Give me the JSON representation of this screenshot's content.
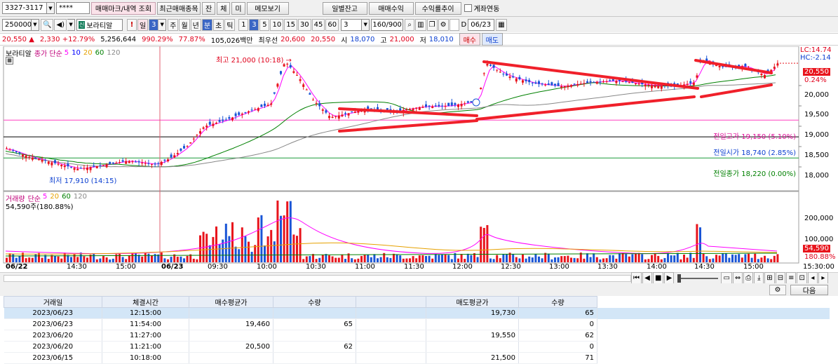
{
  "toolbar1": {
    "account": "3327-3117",
    "password": "****",
    "btn_trade_mark": "매매마크/내역 조회",
    "btn_recent": "최근매매종목",
    "btn_jan": "잔",
    "btn_che": "체",
    "btn_mi": "미",
    "btn_memo": "메모보기",
    "btn_daily": "일별잔고",
    "btn_profit": "매매수익",
    "btn_yield": "수익률추이",
    "account_link": "계좌연동"
  },
  "toolbar2": {
    "stock_code": "250000",
    "market_badge": "신",
    "stock_name": "보라티알",
    "excl": "!",
    "period_day": "일",
    "period_num": "3",
    "periods": [
      "주",
      "월",
      "년",
      "분",
      "초",
      "틱"
    ],
    "minutes": [
      "1",
      "3",
      "5",
      "10",
      "15",
      "30",
      "45",
      "60"
    ],
    "minute_sel": "3",
    "count": "160/900",
    "date_label": "D",
    "date": "06/23"
  },
  "quote": {
    "price": "20,550",
    "up_arrow": "▲",
    "change": "2,330",
    "change_pct": "+12.79%",
    "volume": "5,256,644",
    "vol_ratio": "990.29%",
    "turnover": "77.87%",
    "amount": "105,026백만",
    "best_ask_label": "최우선",
    "best_ask": "20,600",
    "best_bid": "20,550",
    "open_label": "시",
    "open": "18,070",
    "high_label": "고",
    "high": "21,000",
    "low_label": "저",
    "low": "18,010",
    "buy_btn": "매수",
    "sell_btn": "매도"
  },
  "chart": {
    "name_tag": "보라티알",
    "ma_label": "종가 단순",
    "ma_periods": [
      "5",
      "10",
      "20",
      "60",
      "120"
    ],
    "ma_colors": [
      "#ff00ff",
      "#0000ff",
      "#e6a100",
      "#008000",
      "#888888"
    ],
    "lc": "LC:14.74",
    "hc": "HC:-2.14",
    "high_annot": "최고 21,000 (10:18) →",
    "low_annot": "최저 17,910 (14:15)",
    "prev_high": "전일고가 19,150 (5.10%)",
    "prev_open": "전일시가 18,740 (2.85%)",
    "prev_close": "전일종가 18,220 (0.00%)",
    "price_axis": [
      "20,000",
      "19,500",
      "19,000",
      "18,500",
      "18,000"
    ],
    "cur_price_tag": "20,550",
    "cur_pct_tag": "0.24%",
    "vol_label": "거래량",
    "vol_ma_label": "단순",
    "vol_ma_periods": [
      "5",
      "20",
      "60",
      "120"
    ],
    "vol_value": "54,590주(180.88%)",
    "vol_axis": [
      "200,000",
      "100,000"
    ],
    "vol_tag": "54,590",
    "vol_pct_tag": "180.88%",
    "time_labels": [
      "06/22",
      "14:30",
      "15:00",
      "06/23",
      "09:30",
      "10:00",
      "10:30",
      "11:00",
      "11:30",
      "12:00",
      "12:30",
      "13:00",
      "13:30",
      "14:00",
      "14:30",
      "15:00",
      "15:30:00"
    ],
    "up_color": "#e8141c",
    "down_color": "#1a55d6"
  },
  "grid_tools": {
    "next_btn": "다음"
  },
  "grid": {
    "headers": [
      "거래일",
      "체결시간",
      "매수평균가",
      "수량",
      "",
      "매도평균가",
      "수량"
    ],
    "rows": [
      [
        "2023/06/23",
        "12:15:00",
        "",
        "",
        "",
        "19,730",
        "65"
      ],
      [
        "2023/06/23",
        "11:54:00",
        "19,460",
        "65",
        "",
        "",
        "0"
      ],
      [
        "2023/06/20",
        "11:27:00",
        "",
        "",
        "",
        "19,550",
        "62"
      ],
      [
        "2023/06/20",
        "11:21:00",
        "20,500",
        "62",
        "",
        "",
        "0"
      ],
      [
        "2023/06/15",
        "10:18:00",
        "",
        "",
        "",
        "21,500",
        "71"
      ]
    ]
  }
}
